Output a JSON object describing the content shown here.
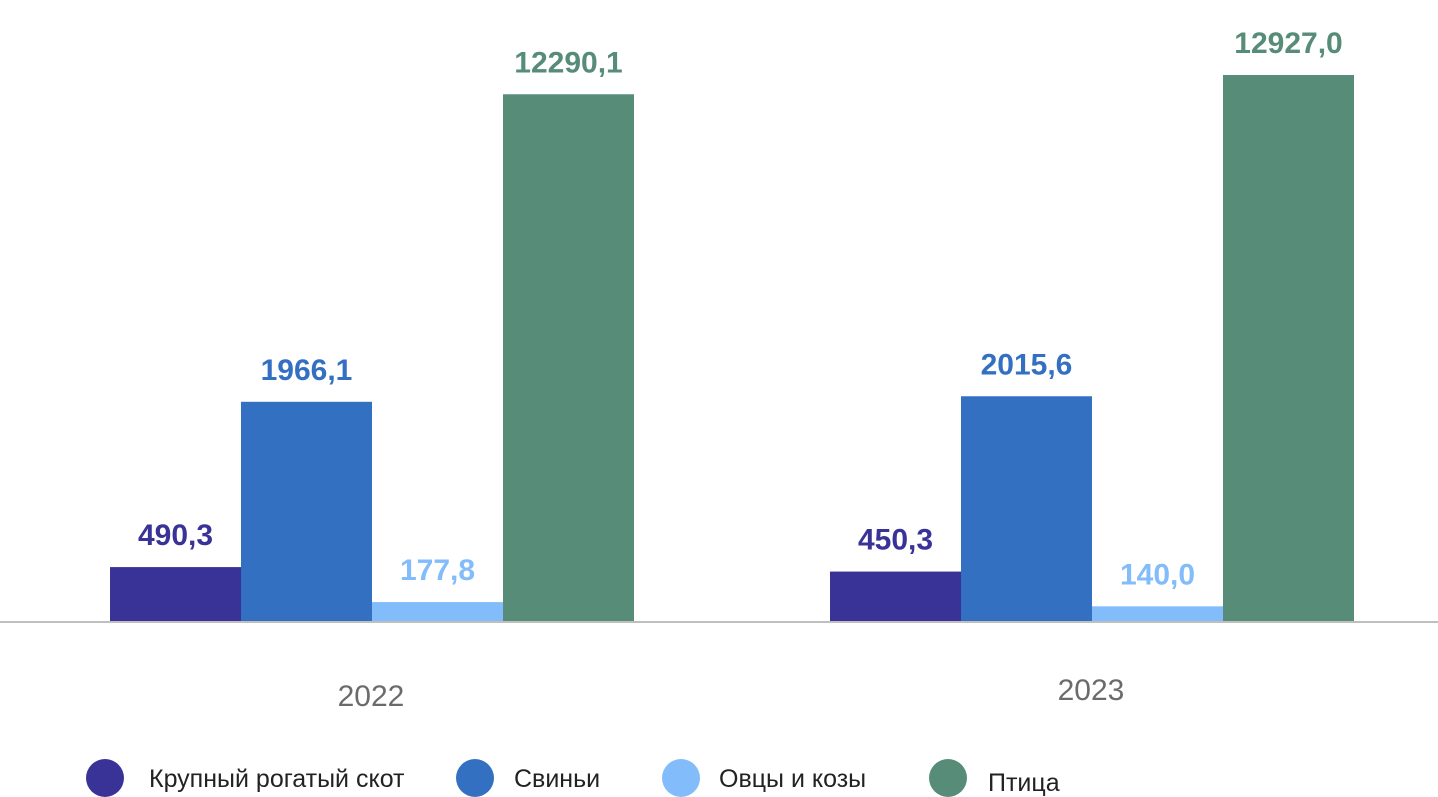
{
  "chart_data": {
    "type": "bar",
    "categories": [
      "2022",
      "2023"
    ],
    "series": [
      {
        "name": "Крупный рогатый скот",
        "values": [
          490.3,
          450.3
        ],
        "labels": [
          "490,3",
          "450,3"
        ],
        "color": "#3A3397"
      },
      {
        "name": "Свиньи",
        "values": [
          1966.1,
          2015.6
        ],
        "labels": [
          "1966,1",
          "2015,6"
        ],
        "color": "#3470C2"
      },
      {
        "name": "Овцы и козы",
        "values": [
          177.8,
          140.0
        ],
        "labels": [
          "177,8",
          "140,0"
        ],
        "color": "#82BCFA"
      },
      {
        "name": "Птица",
        "values": [
          12290.1,
          12927.0
        ],
        "labels": [
          "12290,1",
          "12927,0"
        ],
        "color": "#578C78"
      }
    ],
    "axis_break": true,
    "y_axis_visible": false,
    "grid": false,
    "legend_position": "bottom",
    "axis_line_color": "#BFBFBF"
  }
}
